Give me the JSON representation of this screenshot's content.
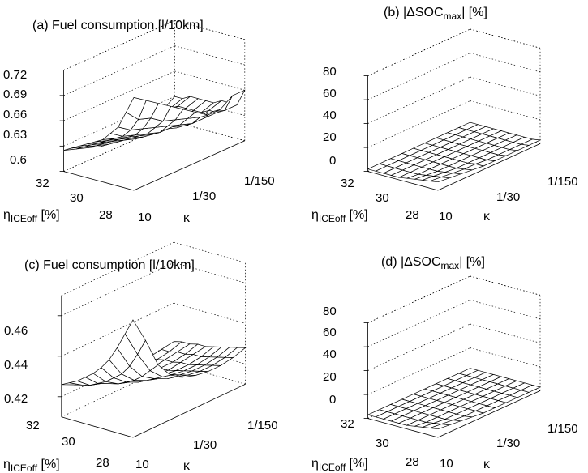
{
  "panels": [
    {
      "id": "a",
      "title": "(a) Fuel consumption [l/10km]",
      "y_ticks": [
        "0.72",
        "0.69",
        "0.66",
        "0.63",
        "0.6"
      ],
      "eta_ticks": [
        "32",
        "30",
        "28"
      ],
      "kappa_ticks": [
        "10",
        "1/30",
        "1/150"
      ],
      "eta_label": "η",
      "eta_label_sub": "ICEoff",
      "eta_label_unit": " [%]",
      "kappa_label": "κ"
    },
    {
      "id": "b",
      "title_pre": "(b) |",
      "title_delta": "Δ",
      "title_main": "SOC",
      "title_sub": "max",
      "title_post": "| [%]",
      "y_ticks": [
        "80",
        "60",
        "40",
        "20",
        "0"
      ],
      "eta_ticks": [
        "32",
        "30",
        "28"
      ],
      "kappa_ticks": [
        "10",
        "1/30",
        "1/150"
      ],
      "eta_label": "η",
      "eta_label_sub": "ICEoff",
      "eta_label_unit": " [%]",
      "kappa_label": "κ"
    },
    {
      "id": "c",
      "title": "(c) Fuel consumption [l/10km]",
      "y_ticks": [
        "0.46",
        "0.44",
        "0.42"
      ],
      "eta_ticks": [
        "32",
        "30",
        "28"
      ],
      "kappa_ticks": [
        "10",
        "1/30",
        "1/150"
      ],
      "eta_label": "η",
      "eta_label_sub": "ICEoff",
      "eta_label_unit": " [%]",
      "kappa_label": "κ"
    },
    {
      "id": "d",
      "title_pre": "(d) |",
      "title_delta": "Δ",
      "title_main": "SOC",
      "title_sub": "max",
      "title_post": "| [%]",
      "y_ticks": [
        "80",
        "60",
        "40",
        "20",
        "0"
      ],
      "eta_ticks": [
        "32",
        "30",
        "28"
      ],
      "kappa_ticks": [
        "10",
        "1/30",
        "1/150"
      ],
      "eta_label": "η",
      "eta_label_sub": "ICEoff",
      "eta_label_unit": " [%]",
      "kappa_label": "κ"
    }
  ],
  "chart_data": [
    {
      "type": "surface",
      "title": "(a) Fuel consumption [l/10km]",
      "xlabel": "κ",
      "ylabel": "η ICEoff [%]",
      "zlim": [
        0.6,
        0.72
      ],
      "x_ticks": [
        "10",
        "1/30",
        "1/150"
      ],
      "y_ticks": [
        32,
        30,
        28
      ],
      "z_ticks": [
        0.6,
        0.63,
        0.66,
        0.69,
        0.72
      ],
      "grid_size": [
        10,
        10
      ],
      "z_values": [
        [
          0.71,
          0.7,
          0.69,
          0.68,
          0.67,
          0.66,
          0.65,
          0.65,
          0.66,
          0.66
        ],
        [
          0.69,
          0.675,
          0.67,
          0.66,
          0.655,
          0.65,
          0.645,
          0.645,
          0.64,
          0.64
        ],
        [
          0.67,
          0.66,
          0.655,
          0.65,
          0.645,
          0.64,
          0.635,
          0.635,
          0.635,
          0.64
        ],
        [
          0.66,
          0.65,
          0.645,
          0.64,
          0.635,
          0.635,
          0.63,
          0.63,
          0.635,
          0.64
        ],
        [
          0.65,
          0.645,
          0.64,
          0.635,
          0.63,
          0.63,
          0.625,
          0.63,
          0.63,
          0.635
        ],
        [
          0.645,
          0.64,
          0.635,
          0.63,
          0.625,
          0.625,
          0.625,
          0.625,
          0.63,
          0.635
        ],
        [
          0.64,
          0.635,
          0.63,
          0.625,
          0.62,
          0.62,
          0.62,
          0.625,
          0.63,
          0.635
        ],
        [
          0.635,
          0.63,
          0.625,
          0.62,
          0.62,
          0.615,
          0.62,
          0.625,
          0.63,
          0.635
        ],
        [
          0.63,
          0.625,
          0.62,
          0.615,
          0.615,
          0.615,
          0.615,
          0.62,
          0.625,
          0.63
        ],
        [
          0.625,
          0.62,
          0.615,
          0.61,
          0.61,
          0.61,
          0.61,
          0.615,
          0.62,
          0.63
        ]
      ]
    },
    {
      "type": "surface",
      "title": "(b) |ΔSOCmax| [%]",
      "xlabel": "κ",
      "ylabel": "η ICEoff [%]",
      "zlim": [
        0,
        80
      ],
      "x_ticks": [
        "10",
        "1/30",
        "1/150"
      ],
      "y_ticks": [
        32,
        30,
        28
      ],
      "z_ticks": [
        0,
        20,
        40,
        60,
        80
      ],
      "grid_size": [
        10,
        10
      ],
      "z_values": [
        [
          7,
          6,
          5,
          4,
          3,
          3,
          3,
          3,
          3,
          3
        ],
        [
          6,
          5,
          4,
          3,
          3,
          2,
          2,
          2,
          2,
          2
        ],
        [
          5,
          4,
          3,
          2,
          2,
          2,
          2,
          2,
          2,
          2
        ],
        [
          4,
          3,
          2,
          2,
          2,
          2,
          2,
          2,
          2,
          2
        ],
        [
          3,
          2,
          2,
          2,
          2,
          2,
          2,
          2,
          2,
          2
        ],
        [
          2,
          2,
          2,
          2,
          2,
          2,
          2,
          2,
          2,
          2
        ],
        [
          2,
          2,
          2,
          2,
          2,
          2,
          2,
          2,
          2,
          2
        ],
        [
          2,
          2,
          2,
          2,
          2,
          2,
          2,
          2,
          2,
          2
        ],
        [
          2,
          2,
          2,
          2,
          2,
          2,
          2,
          2,
          2,
          2
        ],
        [
          2,
          2,
          2,
          2,
          2,
          2,
          2,
          2,
          2,
          2
        ]
      ]
    },
    {
      "type": "surface",
      "title": "(c) Fuel consumption [l/10km]",
      "xlabel": "κ",
      "ylabel": "η ICEoff [%]",
      "zlim": [
        0.41,
        0.47
      ],
      "x_ticks": [
        "10",
        "1/30",
        "1/150"
      ],
      "y_ticks": [
        32,
        30,
        28
      ],
      "z_ticks": [
        0.42,
        0.44,
        0.46
      ],
      "grid_size": [
        10,
        10
      ],
      "z_values": [
        [
          0.468,
          0.455,
          0.44,
          0.432,
          0.428,
          0.426,
          0.425,
          0.425,
          0.426,
          0.428
        ],
        [
          0.46,
          0.447,
          0.436,
          0.43,
          0.427,
          0.425,
          0.424,
          0.424,
          0.425,
          0.427
        ],
        [
          0.452,
          0.44,
          0.432,
          0.428,
          0.425,
          0.424,
          0.423,
          0.423,
          0.424,
          0.426
        ],
        [
          0.445,
          0.435,
          0.429,
          0.426,
          0.424,
          0.423,
          0.422,
          0.422,
          0.423,
          0.425
        ],
        [
          0.44,
          0.432,
          0.427,
          0.424,
          0.423,
          0.422,
          0.421,
          0.421,
          0.422,
          0.424
        ],
        [
          0.436,
          0.429,
          0.425,
          0.423,
          0.422,
          0.421,
          0.42,
          0.421,
          0.422,
          0.423
        ],
        [
          0.433,
          0.427,
          0.424,
          0.422,
          0.421,
          0.42,
          0.42,
          0.42,
          0.421,
          0.423
        ],
        [
          0.43,
          0.425,
          0.423,
          0.421,
          0.42,
          0.42,
          0.419,
          0.42,
          0.421,
          0.422
        ],
        [
          0.428,
          0.424,
          0.422,
          0.42,
          0.419,
          0.419,
          0.419,
          0.419,
          0.42,
          0.422
        ],
        [
          0.426,
          0.423,
          0.421,
          0.419,
          0.419,
          0.418,
          0.418,
          0.419,
          0.42,
          0.421
        ]
      ]
    },
    {
      "type": "surface",
      "title": "(d) |ΔSOCmax| [%]",
      "xlabel": "κ",
      "ylabel": "η ICEoff [%]",
      "zlim": [
        0,
        80
      ],
      "x_ticks": [
        "10",
        "1/30",
        "1/150"
      ],
      "y_ticks": [
        32,
        30,
        28
      ],
      "z_ticks": [
        0,
        20,
        40,
        60,
        80
      ],
      "grid_size": [
        10,
        10
      ],
      "z_values": [
        [
          7,
          6,
          5,
          4,
          3,
          3,
          3,
          3,
          3,
          3
        ],
        [
          6,
          5,
          4,
          3,
          3,
          3,
          3,
          3,
          3,
          3
        ],
        [
          5,
          4,
          3,
          3,
          3,
          3,
          3,
          3,
          3,
          3
        ],
        [
          4,
          3,
          3,
          3,
          3,
          3,
          3,
          3,
          3,
          3
        ],
        [
          3,
          3,
          3,
          3,
          3,
          3,
          3,
          3,
          3,
          3
        ],
        [
          3,
          3,
          3,
          3,
          3,
          3,
          3,
          3,
          3,
          3
        ],
        [
          3,
          3,
          3,
          3,
          3,
          3,
          3,
          3,
          3,
          3
        ],
        [
          3,
          3,
          3,
          3,
          3,
          3,
          3,
          3,
          3,
          3
        ],
        [
          3,
          3,
          3,
          3,
          3,
          3,
          3,
          3,
          3,
          3
        ],
        [
          3,
          3,
          3,
          3,
          3,
          3,
          3,
          3,
          3,
          3
        ]
      ]
    }
  ]
}
